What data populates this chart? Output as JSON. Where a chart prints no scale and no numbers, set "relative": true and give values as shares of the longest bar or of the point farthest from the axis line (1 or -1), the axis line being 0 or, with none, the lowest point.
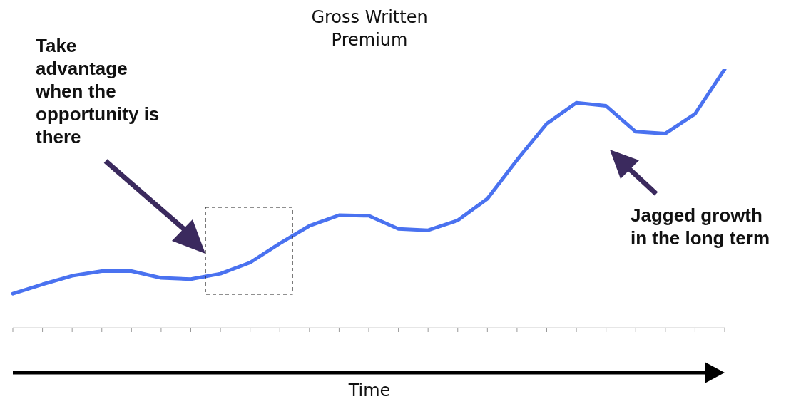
{
  "chart_data": {
    "type": "line",
    "title": "Gross Written Premium",
    "xlabel": "Time",
    "relative": true,
    "categories": [
      null,
      null,
      null,
      null,
      null,
      null,
      null,
      null,
      null,
      null,
      null,
      null,
      null,
      null,
      null,
      null,
      null,
      null,
      null,
      null,
      null,
      null,
      null,
      null,
      null
    ],
    "series": [
      {
        "color": "#4a72f0",
        "values": [
          0.132,
          0.168,
          0.201,
          0.219,
          0.219,
          0.193,
          0.188,
          0.209,
          0.252,
          0.326,
          0.394,
          0.435,
          0.433,
          0.382,
          0.377,
          0.415,
          0.499,
          0.649,
          0.789,
          0.87,
          0.858,
          0.758,
          0.751,
          0.827,
          1
        ]
      }
    ],
    "annotations": [
      "Take advantage when the opportunity is there",
      "Jagged growth in the long term"
    ],
    "legend": false,
    "grid": false,
    "marker": "none",
    "line_style": "solid"
  }
}
